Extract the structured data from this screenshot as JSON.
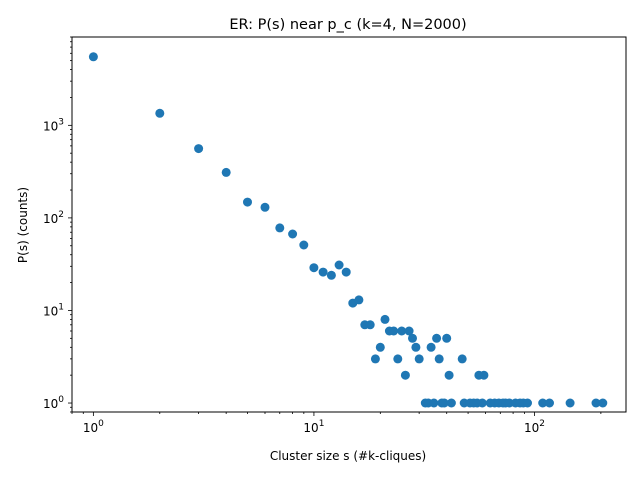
{
  "chart_data": {
    "type": "scatter",
    "title": "ER: P(s) near p_c (k=4, N=2000)",
    "xlabel": "Cluster size s (#k-cliques)",
    "ylabel": "P(s) (counts)",
    "x_scale": "log",
    "y_scale": "log",
    "xlim": [
      0.8,
      260
    ],
    "ylim": [
      0.8,
      9000
    ],
    "grid": false,
    "marker_color": "#1f77b4",
    "x_ticks": [
      {
        "value": 1,
        "base": "10",
        "exp": "0"
      },
      {
        "value": 10,
        "base": "10",
        "exp": "1"
      },
      {
        "value": 100,
        "base": "10",
        "exp": "2"
      }
    ],
    "y_ticks": [
      {
        "value": 1,
        "base": "10",
        "exp": "0"
      },
      {
        "value": 10,
        "base": "10",
        "exp": "1"
      },
      {
        "value": 100,
        "base": "10",
        "exp": "2"
      },
      {
        "value": 1000,
        "base": "10",
        "exp": "3"
      }
    ],
    "points": [
      [
        1,
        5500
      ],
      [
        2,
        1350
      ],
      [
        3,
        560
      ],
      [
        4,
        310
      ],
      [
        5,
        148
      ],
      [
        6,
        130
      ],
      [
        7,
        78
      ],
      [
        8,
        67
      ],
      [
        9,
        51
      ],
      [
        10,
        29
      ],
      [
        11,
        26
      ],
      [
        12,
        24
      ],
      [
        13,
        31
      ],
      [
        14,
        26
      ],
      [
        15,
        12
      ],
      [
        16,
        13
      ],
      [
        17,
        7
      ],
      [
        18,
        7
      ],
      [
        19,
        3
      ],
      [
        20,
        4
      ],
      [
        21,
        8
      ],
      [
        22,
        6
      ],
      [
        23,
        6
      ],
      [
        24,
        3
      ],
      [
        25,
        6
      ],
      [
        26,
        2
      ],
      [
        27,
        6
      ],
      [
        28,
        5
      ],
      [
        29,
        4
      ],
      [
        30,
        3
      ],
      [
        32,
        1
      ],
      [
        33,
        1
      ],
      [
        34,
        4
      ],
      [
        35,
        1
      ],
      [
        36,
        5
      ],
      [
        37,
        3
      ],
      [
        38,
        1
      ],
      [
        39,
        1
      ],
      [
        40,
        5
      ],
      [
        41,
        2
      ],
      [
        42,
        1
      ],
      [
        47,
        3
      ],
      [
        48,
        1
      ],
      [
        51,
        1
      ],
      [
        53,
        1
      ],
      [
        55,
        1
      ],
      [
        56,
        2
      ],
      [
        58,
        1
      ],
      [
        59,
        2
      ],
      [
        63,
        1
      ],
      [
        66,
        1
      ],
      [
        69,
        1
      ],
      [
        72,
        1
      ],
      [
        74,
        1
      ],
      [
        77,
        1
      ],
      [
        82,
        1
      ],
      [
        86,
        1
      ],
      [
        89,
        1
      ],
      [
        93,
        1
      ],
      [
        109,
        1
      ],
      [
        117,
        1
      ],
      [
        145,
        1
      ],
      [
        190,
        1
      ],
      [
        204,
        1
      ]
    ]
  }
}
